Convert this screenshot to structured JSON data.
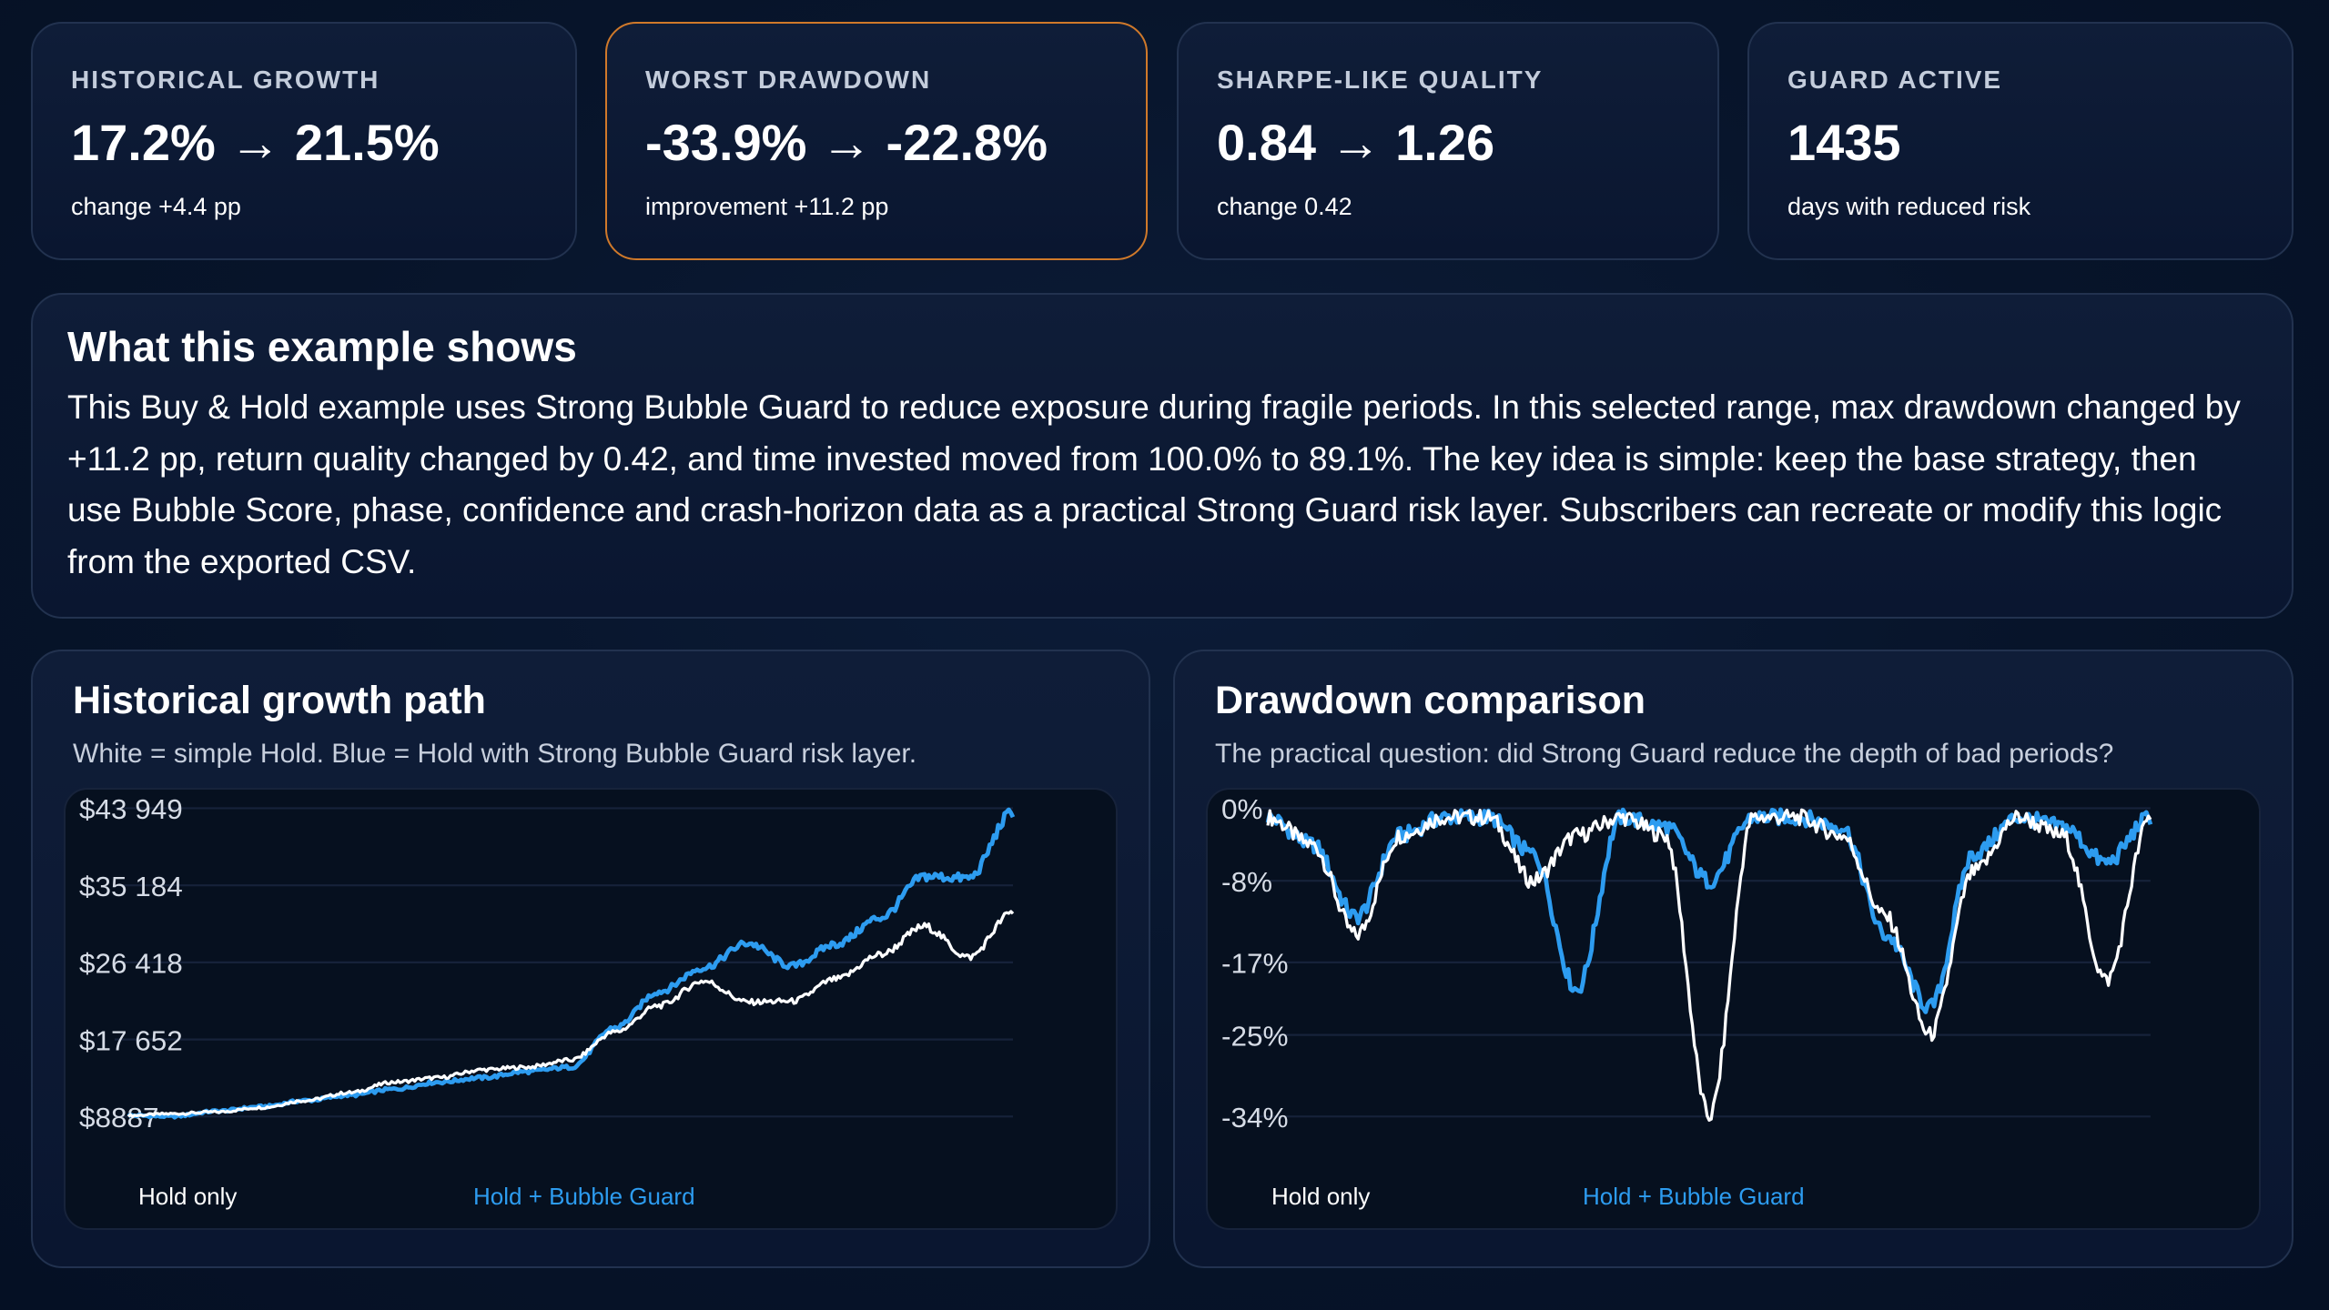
{
  "stats": [
    {
      "label": "HISTORICAL GROWTH",
      "value": "17.2% → 21.5%",
      "sub": "change +4.4 pp"
    },
    {
      "label": "WORST DRAWDOWN",
      "value": "-33.9% → -22.8%",
      "sub": "improvement +11.2 pp"
    },
    {
      "label": "SHARPE-LIKE QUALITY",
      "value": "0.84 → 1.26",
      "sub": "change 0.42"
    },
    {
      "label": "GUARD ACTIVE",
      "value": "1435",
      "sub": "days with reduced risk"
    }
  ],
  "about": {
    "title": "What this example shows",
    "body": "This Buy & Hold example uses Strong Bubble Guard to reduce exposure during fragile periods. In this selected range, max drawdown changed by +11.2 pp, return quality changed by 0.42, and time invested moved from 100.0% to 89.1%. The key idea is simple: keep the base strategy, then use Bubble Score, phase, confidence and crash-horizon data as a practical Strong Guard risk layer. Subscribers can recreate or modify this logic from the exported CSV."
  },
  "colors": {
    "hold": "#ffffff",
    "guard": "#2d9cf0",
    "accent_border": "#d0792a"
  },
  "growth_panel": {
    "title": "Historical growth path",
    "subtitle": "White = simple Hold. Blue = Hold with Strong Bubble Guard risk layer.",
    "legend_hold": "Hold only",
    "legend_guard": "Hold + Bubble Guard"
  },
  "drawdown_panel": {
    "title": "Drawdown comparison",
    "subtitle": "The practical question: did Strong Guard reduce the depth of bad periods?",
    "legend_hold": "Hold only",
    "legend_guard": "Hold + Bubble Guard"
  },
  "chart_data": [
    {
      "type": "line",
      "title": "Historical growth path",
      "y_tick_labels": [
        "$43 949",
        "$35 184",
        "$26 418",
        "$17 652",
        "$8887"
      ],
      "y_ticks": [
        43949,
        35184,
        26418,
        17652,
        8887
      ],
      "ylim": [
        8887,
        43949
      ],
      "x": [
        0,
        0.05,
        0.1,
        0.15,
        0.2,
        0.25,
        0.3,
        0.35,
        0.4,
        0.45,
        0.5,
        0.55,
        0.6,
        0.65,
        0.7,
        0.75,
        0.8,
        0.85,
        0.9,
        0.95,
        1.0
      ],
      "series": [
        {
          "name": "Hold only",
          "values": [
            9000,
            9200,
            9400,
            9900,
            10700,
            11600,
            12800,
            13300,
            14200,
            14500,
            15300,
            18500,
            21500,
            24300,
            21900,
            22000,
            24500,
            27300,
            30500,
            27000,
            32100
          ]
        },
        {
          "name": "Hold + Bubble Guard",
          "values": [
            9000,
            8900,
            9500,
            10000,
            10700,
            11300,
            12000,
            12800,
            13300,
            14000,
            14500,
            19000,
            23100,
            25800,
            28600,
            26000,
            28500,
            31500,
            36200,
            36000,
            43500
          ]
        }
      ],
      "grid": true
    },
    {
      "type": "line",
      "title": "Drawdown comparison",
      "y_tick_labels": [
        "0%",
        "-8%",
        "-17%",
        "-25%",
        "-34%"
      ],
      "y_ticks": [
        0,
        -8,
        -17,
        -25,
        -34
      ],
      "ylim": [
        -34,
        0
      ],
      "x": [
        0,
        0.05,
        0.1,
        0.15,
        0.2,
        0.25,
        0.3,
        0.35,
        0.4,
        0.45,
        0.5,
        0.55,
        0.6,
        0.65,
        0.7,
        0.75,
        0.8,
        0.85,
        0.9,
        0.95,
        1.0
      ],
      "series": [
        {
          "name": "Hold only",
          "values": [
            -1,
            -4,
            -14,
            -3,
            -1,
            -1,
            -8,
            -3,
            -1,
            -3,
            -34,
            -1,
            -1,
            -3,
            -12,
            -25,
            -7,
            -1,
            -3,
            -19,
            -1
          ]
        },
        {
          "name": "Hold + Bubble Guard",
          "values": [
            -1,
            -4,
            -12,
            -3,
            -1,
            -1,
            -5,
            -20,
            -1,
            -2,
            -8,
            -1,
            -1,
            -2,
            -14,
            -22,
            -5,
            -1,
            -2,
            -6,
            -1
          ]
        }
      ],
      "grid": true
    }
  ]
}
